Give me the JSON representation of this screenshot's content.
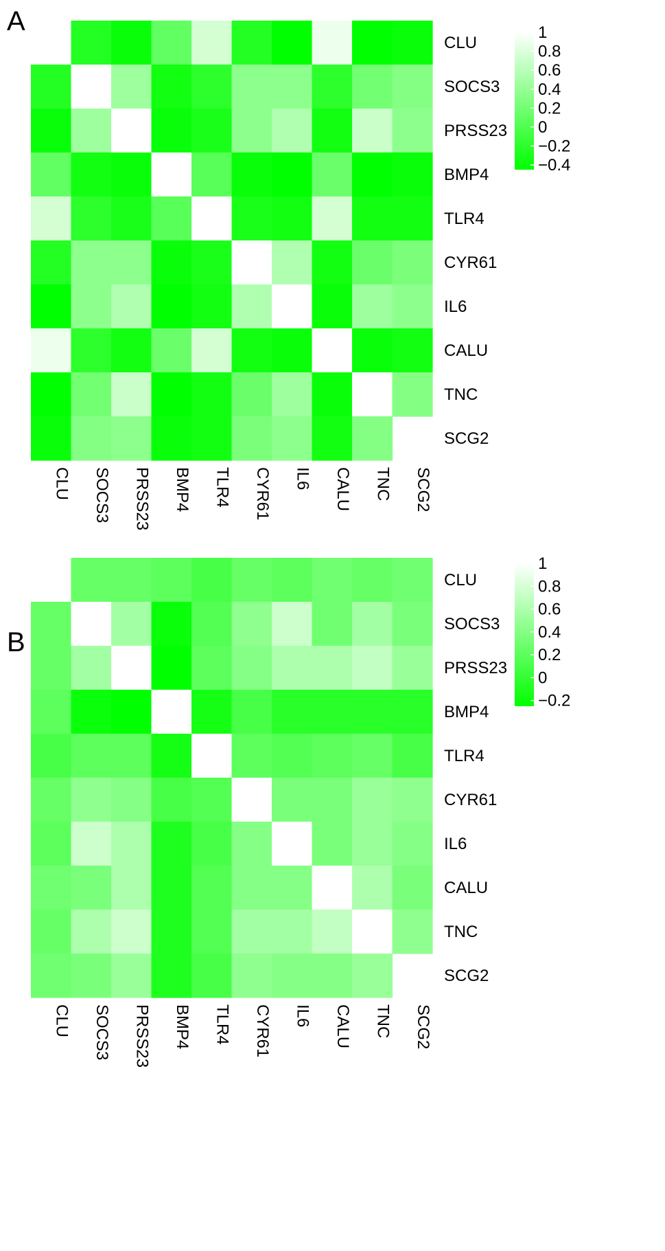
{
  "chart_data": [
    {
      "type": "heatmap",
      "panel_label": "A",
      "title": "",
      "xlabel": "",
      "ylabel": "",
      "rows": [
        "CLU",
        "SOCS3",
        "PRSS23",
        "BMP4",
        "TLR4",
        "CYR61",
        "IL6",
        "CALU",
        "TNC",
        "SCG2"
      ],
      "columns": [
        "CLU",
        "SOCS3",
        "PRSS23",
        "BMP4",
        "TLR4",
        "CYR61",
        "IL6",
        "CALU",
        "TNC",
        "SCG2"
      ],
      "diagonal_hidden_corners": [
        "CLU-CLU",
        "SCG2-SCG2"
      ],
      "values": [
        [
          null,
          -0.25,
          -0.4,
          0.1,
          0.75,
          -0.25,
          -0.45,
          0.9,
          -0.45,
          -0.4
        ],
        [
          -0.25,
          1.0,
          0.45,
          -0.35,
          -0.2,
          0.35,
          0.35,
          -0.2,
          0.2,
          0.3
        ],
        [
          -0.4,
          0.45,
          1.0,
          -0.4,
          -0.3,
          0.35,
          0.55,
          -0.35,
          0.7,
          0.35
        ],
        [
          0.1,
          -0.35,
          -0.4,
          1.0,
          0.05,
          -0.4,
          -0.45,
          0.15,
          -0.45,
          -0.4
        ],
        [
          0.75,
          -0.2,
          -0.3,
          0.05,
          1.0,
          -0.3,
          -0.35,
          0.75,
          -0.35,
          -0.35
        ],
        [
          -0.25,
          0.35,
          0.35,
          -0.4,
          -0.3,
          1.0,
          0.55,
          -0.35,
          0.15,
          0.25
        ],
        [
          -0.45,
          0.35,
          0.55,
          -0.45,
          -0.35,
          0.55,
          1.0,
          -0.4,
          0.45,
          0.35
        ],
        [
          0.9,
          -0.2,
          -0.35,
          0.15,
          0.75,
          -0.35,
          -0.4,
          1.0,
          -0.4,
          -0.35
        ],
        [
          -0.45,
          0.2,
          0.7,
          -0.45,
          -0.35,
          0.15,
          0.45,
          -0.4,
          1.0,
          0.3
        ],
        [
          -0.4,
          0.3,
          0.35,
          -0.4,
          -0.35,
          0.25,
          0.35,
          -0.35,
          0.3,
          null
        ]
      ],
      "colorbar": {
        "min": -0.45,
        "max": 1,
        "ticks": [
          "1",
          "0.8",
          "0.6",
          "0.4",
          "0.2",
          "0",
          "−0.2",
          "−0.4"
        ],
        "tick_values": [
          1,
          0.8,
          0.6,
          0.4,
          0.2,
          0,
          -0.2,
          -0.4
        ]
      },
      "colors": {
        "low": "#00ff00",
        "high": "#ffffff"
      }
    },
    {
      "type": "heatmap",
      "panel_label": "B",
      "title": "",
      "xlabel": "",
      "ylabel": "",
      "rows": [
        "CLU",
        "SOCS3",
        "PRSS23",
        "BMP4",
        "TLR4",
        "CYR61",
        "IL6",
        "CALU",
        "TNC",
        "SCG2"
      ],
      "columns": [
        "CLU",
        "SOCS3",
        "PRSS23",
        "BMP4",
        "TLR4",
        "CYR61",
        "IL6",
        "CALU",
        "TNC",
        "SCG2"
      ],
      "diagonal_hidden_corners": [
        "CLU-CLU",
        "SCG2-SCG2"
      ],
      "values": [
        [
          null,
          0.25,
          0.25,
          0.2,
          0.1,
          0.25,
          0.2,
          0.3,
          0.25,
          0.3
        ],
        [
          0.25,
          1.0,
          0.55,
          -0.2,
          0.15,
          0.45,
          0.75,
          0.3,
          0.55,
          0.35
        ],
        [
          0.25,
          0.55,
          1.0,
          -0.25,
          0.2,
          0.4,
          0.6,
          0.6,
          0.7,
          0.5
        ],
        [
          0.2,
          -0.2,
          -0.25,
          1.0,
          -0.15,
          0.1,
          -0.05,
          -0.05,
          -0.05,
          -0.05
        ],
        [
          0.1,
          0.2,
          0.2,
          -0.15,
          1.0,
          0.2,
          0.15,
          0.2,
          0.25,
          0.1
        ],
        [
          0.25,
          0.45,
          0.4,
          0.1,
          0.15,
          1.0,
          0.35,
          0.35,
          0.5,
          0.45
        ],
        [
          0.2,
          0.75,
          0.6,
          -0.1,
          0.1,
          0.4,
          1.0,
          0.35,
          0.5,
          0.4
        ],
        [
          0.3,
          0.35,
          0.6,
          -0.1,
          0.15,
          0.4,
          0.4,
          1.0,
          0.6,
          0.35
        ],
        [
          0.25,
          0.6,
          0.75,
          -0.1,
          0.15,
          0.55,
          0.55,
          0.7,
          1.0,
          0.45
        ],
        [
          0.3,
          0.35,
          0.5,
          -0.1,
          0.1,
          0.45,
          0.4,
          0.4,
          0.5,
          null
        ]
      ],
      "colorbar": {
        "min": -0.25,
        "max": 1,
        "ticks": [
          "1",
          "0.8",
          "0.6",
          "0.4",
          "0.2",
          "0",
          "−0.2"
        ],
        "tick_values": [
          1,
          0.8,
          0.6,
          0.4,
          0.2,
          0,
          -0.2
        ]
      },
      "colors": {
        "low": "#00ff00",
        "high": "#ffffff"
      }
    }
  ]
}
